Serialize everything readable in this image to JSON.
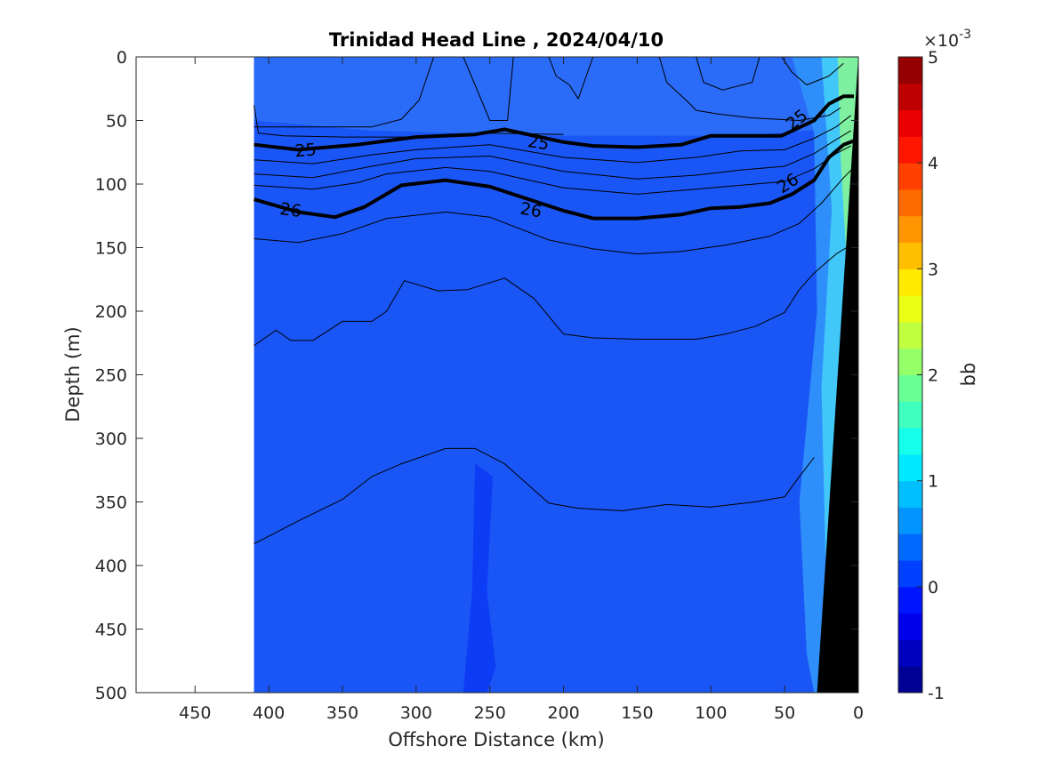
{
  "chart_data": {
    "type": "heatmap",
    "title": "Trinidad Head Line , 2024/04/10",
    "xlabel": "Offshore Distance (km)",
    "ylabel": "Depth (m)",
    "xlim": [
      490,
      0
    ],
    "ylim": [
      500,
      0
    ],
    "x_reversed": true,
    "y_reversed": true,
    "x_ticks": [
      450,
      400,
      350,
      300,
      250,
      200,
      150,
      100,
      50,
      0
    ],
    "y_ticks": [
      0,
      50,
      100,
      150,
      200,
      250,
      300,
      350,
      400,
      450,
      500
    ],
    "grid": false,
    "data_extent_km": [
      410,
      0
    ],
    "colorbar": {
      "label": "bb",
      "exponent_label": "×10",
      "exponent_power": "-3",
      "range": [
        -1,
        5
      ],
      "ticks": [
        "5",
        "4",
        "3",
        "2",
        "1",
        "0",
        "-1"
      ],
      "colormap": "jet"
    },
    "contour_labels": [
      {
        "text": "25",
        "x": 375,
        "y": 73,
        "angle": -5
      },
      {
        "text": "25",
        "x": 217,
        "y": 67,
        "angle": 8
      },
      {
        "text": "25",
        "x": 42,
        "y": 49,
        "angle": -38
      },
      {
        "text": "26",
        "x": 385,
        "y": 120,
        "angle": 8
      },
      {
        "text": "26",
        "x": 222,
        "y": 120,
        "angle": 10
      },
      {
        "text": "26",
        "x": 48,
        "y": 99,
        "angle": -33
      }
    ],
    "isopycnals": [
      {
        "name": "25",
        "bold": true,
        "points": [
          [
            410,
            69
          ],
          [
            380,
            73
          ],
          [
            340,
            69
          ],
          [
            300,
            63
          ],
          [
            260,
            61
          ],
          [
            240,
            57
          ],
          [
            200,
            67
          ],
          [
            180,
            70
          ],
          [
            150,
            71
          ],
          [
            120,
            69
          ],
          [
            100,
            62
          ],
          [
            70,
            62
          ],
          [
            52,
            62
          ],
          [
            30,
            50
          ],
          [
            20,
            37
          ],
          [
            10,
            31
          ],
          [
            3,
            31
          ]
        ]
      },
      {
        "name": "26",
        "bold": true,
        "points": [
          [
            410,
            112
          ],
          [
            380,
            122
          ],
          [
            355,
            126
          ],
          [
            335,
            118
          ],
          [
            310,
            101
          ],
          [
            280,
            97
          ],
          [
            250,
            102
          ],
          [
            200,
            121
          ],
          [
            180,
            127
          ],
          [
            150,
            127
          ],
          [
            120,
            124
          ],
          [
            100,
            119
          ],
          [
            80,
            118
          ],
          [
            60,
            115
          ],
          [
            45,
            108
          ],
          [
            30,
            97
          ],
          [
            20,
            79
          ],
          [
            10,
            69
          ],
          [
            3,
            66
          ]
        ]
      },
      {
        "name": "",
        "bold": false,
        "points": [
          [
            410,
            81
          ],
          [
            370,
            84
          ],
          [
            330,
            77
          ],
          [
            300,
            73
          ],
          [
            250,
            69
          ],
          [
            200,
            79
          ],
          [
            150,
            83
          ],
          [
            110,
            79
          ],
          [
            80,
            74
          ],
          [
            50,
            73
          ],
          [
            30,
            64
          ],
          [
            15,
            55
          ],
          [
            5,
            46
          ]
        ]
      },
      {
        "name": "",
        "bold": false,
        "points": [
          [
            410,
            92
          ],
          [
            370,
            95
          ],
          [
            330,
            86
          ],
          [
            300,
            80
          ],
          [
            250,
            78
          ],
          [
            200,
            90
          ],
          [
            150,
            96
          ],
          [
            110,
            93
          ],
          [
            80,
            89
          ],
          [
            50,
            86
          ],
          [
            30,
            76
          ],
          [
            15,
            65
          ],
          [
            5,
            58
          ]
        ]
      },
      {
        "name": "",
        "bold": false,
        "points": [
          [
            410,
            101
          ],
          [
            370,
            104
          ],
          [
            340,
            99
          ],
          [
            320,
            92
          ],
          [
            280,
            87
          ],
          [
            250,
            90
          ],
          [
            200,
            103
          ],
          [
            150,
            108
          ],
          [
            110,
            104
          ],
          [
            80,
            101
          ],
          [
            50,
            98
          ],
          [
            30,
            88
          ],
          [
            15,
            76
          ],
          [
            5,
            70
          ]
        ]
      },
      {
        "name": "",
        "bold": false,
        "points": [
          [
            410,
            143
          ],
          [
            380,
            146
          ],
          [
            350,
            139
          ],
          [
            320,
            127
          ],
          [
            280,
            122
          ],
          [
            250,
            126
          ],
          [
            210,
            144
          ],
          [
            180,
            151
          ],
          [
            150,
            155
          ],
          [
            120,
            153
          ],
          [
            90,
            148
          ],
          [
            60,
            141
          ],
          [
            40,
            131
          ],
          [
            25,
            115
          ],
          [
            10,
            95
          ],
          [
            3,
            87
          ]
        ]
      },
      {
        "name": "",
        "bold": false,
        "points": [
          [
            410,
            227
          ],
          [
            395,
            215
          ],
          [
            385,
            223
          ],
          [
            370,
            223
          ],
          [
            350,
            208
          ],
          [
            330,
            208
          ],
          [
            320,
            200
          ],
          [
            308,
            176
          ],
          [
            285,
            184
          ],
          [
            265,
            183
          ],
          [
            240,
            174
          ],
          [
            220,
            190
          ],
          [
            200,
            218
          ],
          [
            180,
            221
          ],
          [
            150,
            222
          ],
          [
            110,
            222
          ],
          [
            90,
            218
          ],
          [
            70,
            212
          ],
          [
            50,
            201
          ],
          [
            40,
            183
          ],
          [
            30,
            170
          ],
          [
            15,
            155
          ],
          [
            8,
            150
          ]
        ]
      },
      {
        "name": "",
        "bold": false,
        "points": [
          [
            410,
            383
          ],
          [
            380,
            365
          ],
          [
            350,
            348
          ],
          [
            330,
            330
          ],
          [
            310,
            320
          ],
          [
            280,
            308
          ],
          [
            260,
            308
          ],
          [
            240,
            320
          ],
          [
            210,
            351
          ],
          [
            190,
            355
          ],
          [
            160,
            357
          ],
          [
            130,
            352
          ],
          [
            100,
            354
          ],
          [
            70,
            350
          ],
          [
            50,
            346
          ],
          [
            40,
            330
          ],
          [
            30,
            315
          ]
        ]
      },
      {
        "name": "",
        "bold": false,
        "points": [
          [
            410,
            38
          ],
          [
            407,
            60
          ],
          [
            390,
            62
          ],
          [
            350,
            63
          ],
          [
            300,
            63
          ],
          [
            250,
            60
          ],
          [
            200,
            61
          ]
        ]
      },
      {
        "name": "",
        "bold": false,
        "points": [
          [
            410,
            55
          ],
          [
            330,
            55
          ],
          [
            310,
            49
          ],
          [
            298,
            34
          ],
          [
            288,
            0
          ]
        ]
      },
      {
        "name": "",
        "bold": false,
        "points": [
          [
            268,
            0
          ],
          [
            255,
            36
          ],
          [
            250,
            50
          ],
          [
            238,
            50
          ],
          [
            234,
            0
          ]
        ]
      },
      {
        "name": "",
        "bold": false,
        "points": [
          [
            210,
            0
          ],
          [
            205,
            15
          ],
          [
            196,
            22
          ],
          [
            190,
            33
          ],
          [
            180,
            0
          ]
        ]
      },
      {
        "name": "",
        "bold": false,
        "points": [
          [
            135,
            0
          ],
          [
            130,
            20
          ],
          [
            115,
            36
          ],
          [
            110,
            42
          ],
          [
            95,
            45
          ],
          [
            72,
            48
          ],
          [
            40,
            50
          ],
          [
            20,
            46
          ],
          [
            12,
            40
          ]
        ]
      },
      {
        "name": "",
        "bold": false,
        "points": [
          [
            67,
            0
          ],
          [
            72,
            20
          ],
          [
            92,
            26
          ],
          [
            105,
            20
          ],
          [
            110,
            0
          ]
        ]
      },
      {
        "name": "",
        "bold": false,
        "points": [
          [
            52,
            0
          ],
          [
            45,
            12
          ],
          [
            35,
            22
          ],
          [
            20,
            15
          ],
          [
            10,
            5
          ]
        ]
      }
    ]
  }
}
